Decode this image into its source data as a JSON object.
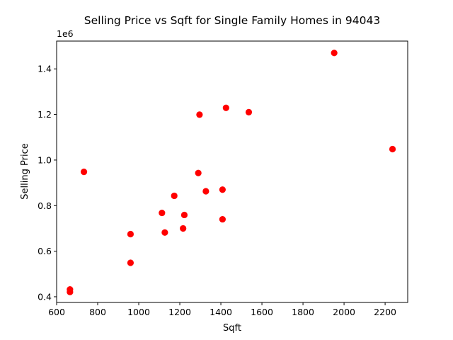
{
  "chart_data": {
    "type": "scatter",
    "title": "Selling Price vs Sqft for Single Family Homes in 94043",
    "xlabel": "Sqft",
    "ylabel": "Selling Price",
    "y_offset_text": "1e6",
    "xlim": [
      600,
      2310
    ],
    "ylim": [
      375000,
      1522000
    ],
    "x_ticks": [
      600,
      800,
      1000,
      1200,
      1400,
      1600,
      1800,
      2000,
      2200
    ],
    "x_tick_labels": [
      "600",
      "800",
      "1000",
      "1200",
      "1400",
      "1600",
      "1800",
      "2000",
      "2200"
    ],
    "y_ticks": [
      400000,
      600000,
      800000,
      1000000,
      1200000,
      1400000
    ],
    "y_tick_labels": [
      "0.4",
      "0.6",
      "0.8",
      "1.0",
      "1.2",
      "1.4"
    ],
    "grid": false,
    "marker_color": "#ff0000",
    "points": [
      {
        "x": 665,
        "y": 432000
      },
      {
        "x": 665,
        "y": 421000
      },
      {
        "x": 733,
        "y": 948000
      },
      {
        "x": 960,
        "y": 675000
      },
      {
        "x": 960,
        "y": 549000
      },
      {
        "x": 1113,
        "y": 768000
      },
      {
        "x": 1127,
        "y": 682000
      },
      {
        "x": 1173,
        "y": 843000
      },
      {
        "x": 1216,
        "y": 700000
      },
      {
        "x": 1222,
        "y": 759000
      },
      {
        "x": 1290,
        "y": 943000
      },
      {
        "x": 1296,
        "y": 1199000
      },
      {
        "x": 1327,
        "y": 863000
      },
      {
        "x": 1408,
        "y": 870000
      },
      {
        "x": 1408,
        "y": 740000
      },
      {
        "x": 1425,
        "y": 1229000
      },
      {
        "x": 1536,
        "y": 1210000
      },
      {
        "x": 1952,
        "y": 1470000
      },
      {
        "x": 2236,
        "y": 1048000
      }
    ]
  }
}
